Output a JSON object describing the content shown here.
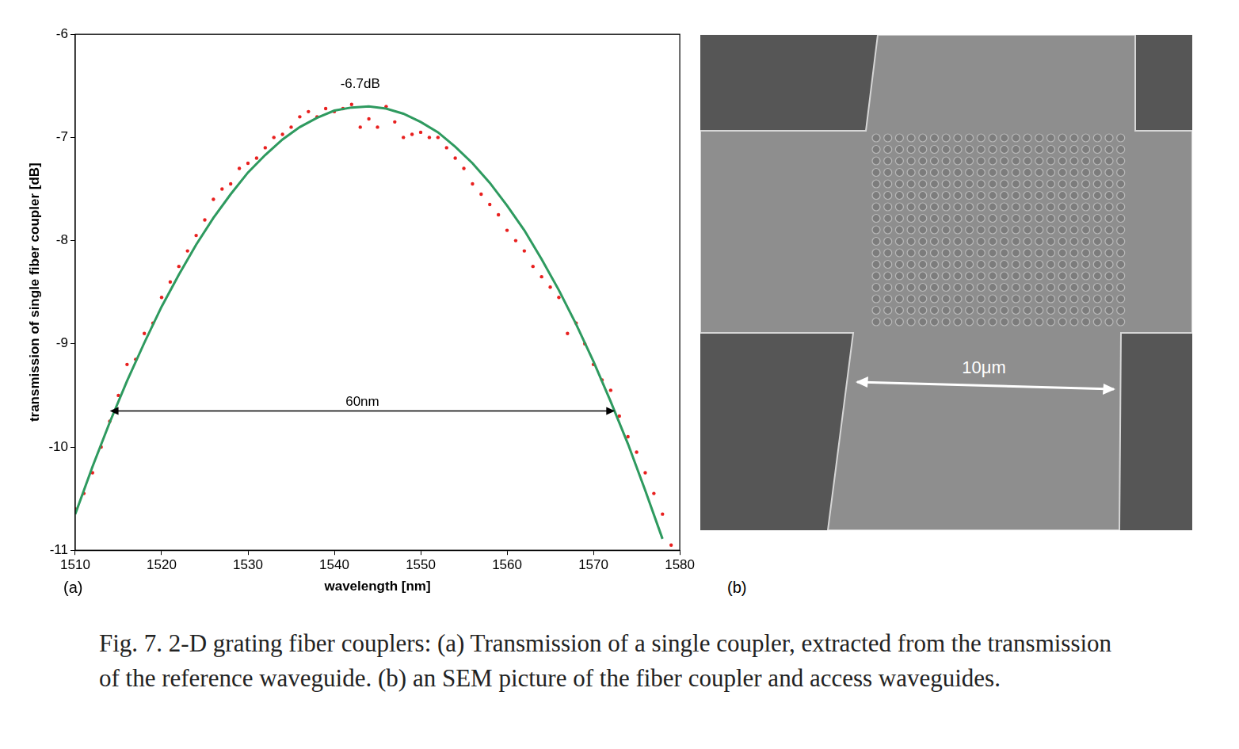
{
  "chart_data": {
    "type": "scatter",
    "x_label": "wavelength [nm]",
    "y_label": "transmission of single fiber coupler [dB]",
    "xlim": [
      1510,
      1580
    ],
    "xticks": [
      1510,
      1520,
      1530,
      1540,
      1550,
      1560,
      1570,
      1580
    ],
    "ylim": [
      -11,
      -6
    ],
    "yticks": [
      -11,
      -10,
      -9,
      -8,
      -7,
      -6
    ],
    "grid": false,
    "series": [
      {
        "color": "#e8201f",
        "marker": "dot",
        "line_style": "none",
        "x": [
          1510,
          1511,
          1512,
          1513,
          1514,
          1515,
          1516,
          1517,
          1518,
          1519,
          1520,
          1521,
          1522,
          1523,
          1524,
          1525,
          1526,
          1527,
          1528,
          1529,
          1530,
          1531,
          1532,
          1533,
          1534,
          1535,
          1536,
          1537,
          1538,
          1539,
          1540,
          1541,
          1542,
          1543,
          1544,
          1545,
          1546,
          1547,
          1548,
          1549,
          1550,
          1551,
          1552,
          1553,
          1554,
          1555,
          1556,
          1557,
          1558,
          1559,
          1560,
          1561,
          1562,
          1563,
          1564,
          1565,
          1566,
          1567,
          1568,
          1569,
          1570,
          1571,
          1572,
          1573,
          1574,
          1575,
          1576,
          1577,
          1578,
          1579
        ],
        "values": [
          -10.6,
          -10.45,
          -10.25,
          -10.0,
          -9.75,
          -9.5,
          -9.2,
          -9.15,
          -8.9,
          -8.8,
          -8.55,
          -8.4,
          -8.25,
          -8.1,
          -7.95,
          -7.8,
          -7.6,
          -7.5,
          -7.45,
          -7.3,
          -7.25,
          -7.2,
          -7.1,
          -7.0,
          -6.97,
          -6.9,
          -6.8,
          -6.75,
          -6.8,
          -6.72,
          -6.75,
          -6.72,
          -6.68,
          -6.9,
          -6.82,
          -6.9,
          -6.7,
          -6.85,
          -7.0,
          -6.97,
          -6.95,
          -7.0,
          -7.0,
          -7.1,
          -7.2,
          -7.3,
          -7.45,
          -7.55,
          -7.65,
          -7.75,
          -7.9,
          -8.0,
          -8.1,
          -8.25,
          -8.35,
          -8.45,
          -8.55,
          -8.9,
          -8.8,
          -9.0,
          -9.2,
          -9.35,
          -9.45,
          -9.7,
          -9.9,
          -10.05,
          -10.25,
          -10.45,
          -10.65,
          -10.95
        ]
      },
      {
        "color": "#2e9a5f",
        "marker": "none",
        "line_style": "solid",
        "x": [
          1510,
          1512,
          1514,
          1516,
          1518,
          1520,
          1522,
          1524,
          1526,
          1528,
          1530,
          1532,
          1534,
          1536,
          1538,
          1540,
          1542,
          1544,
          1546,
          1548,
          1550,
          1552,
          1554,
          1556,
          1558,
          1560,
          1562,
          1564,
          1566,
          1568,
          1570,
          1572,
          1574,
          1576,
          1578
        ],
        "values": [
          -10.65,
          -10.19,
          -9.76,
          -9.36,
          -8.99,
          -8.64,
          -8.33,
          -8.04,
          -7.78,
          -7.55,
          -7.34,
          -7.17,
          -7.02,
          -6.9,
          -6.81,
          -6.74,
          -6.71,
          -6.7,
          -6.72,
          -6.77,
          -6.85,
          -6.95,
          -7.09,
          -7.25,
          -7.44,
          -7.66,
          -7.9,
          -8.18,
          -8.48,
          -8.81,
          -9.17,
          -9.56,
          -9.97,
          -10.42,
          -10.89
        ]
      }
    ],
    "annotations": [
      {
        "text": "-6.7dB",
        "x": 1543,
        "y": -6.55
      },
      {
        "text": "60nm",
        "x1": 1514,
        "x2": 1572.5,
        "y": -9.65
      }
    ]
  },
  "figure": {
    "panel_labels": [
      "(a)",
      "(b)"
    ],
    "sem_scale_bar": "10μm",
    "caption": "Fig. 7. 2-D grating fiber couplers: (a) Transmission of a single coupler, extracted from the transmission of the reference waveguide. (b) an SEM picture of the fiber coupler and access waveguides."
  }
}
